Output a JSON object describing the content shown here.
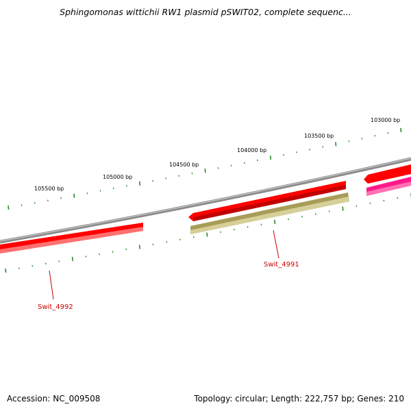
{
  "title": "Sphingomonas wittichii RW1 plasmid pSWIT02, complete sequenc...",
  "footer": {
    "accession": "Accession: NC_009508",
    "summary": "Topology: circular; Length: 222,757 bp; Genes: 210"
  },
  "colors": {
    "backbone": "#8a8a8a",
    "gene_forward": "#ff0000",
    "gene_reverse": "#ff0000",
    "gene_other": "#c8bf80",
    "gene_pink": "#ff1a8c",
    "tick": "#2a8a2a",
    "label": "#cc0000"
  },
  "ticks": {
    "labels": [
      "105500 bp",
      "105000 bp",
      "104500 bp",
      "104000 bp",
      "103500 bp",
      "103000 bp"
    ]
  },
  "genes": [
    {
      "name": "Swit_4992"
    },
    {
      "name": "Swit_4991"
    }
  ]
}
